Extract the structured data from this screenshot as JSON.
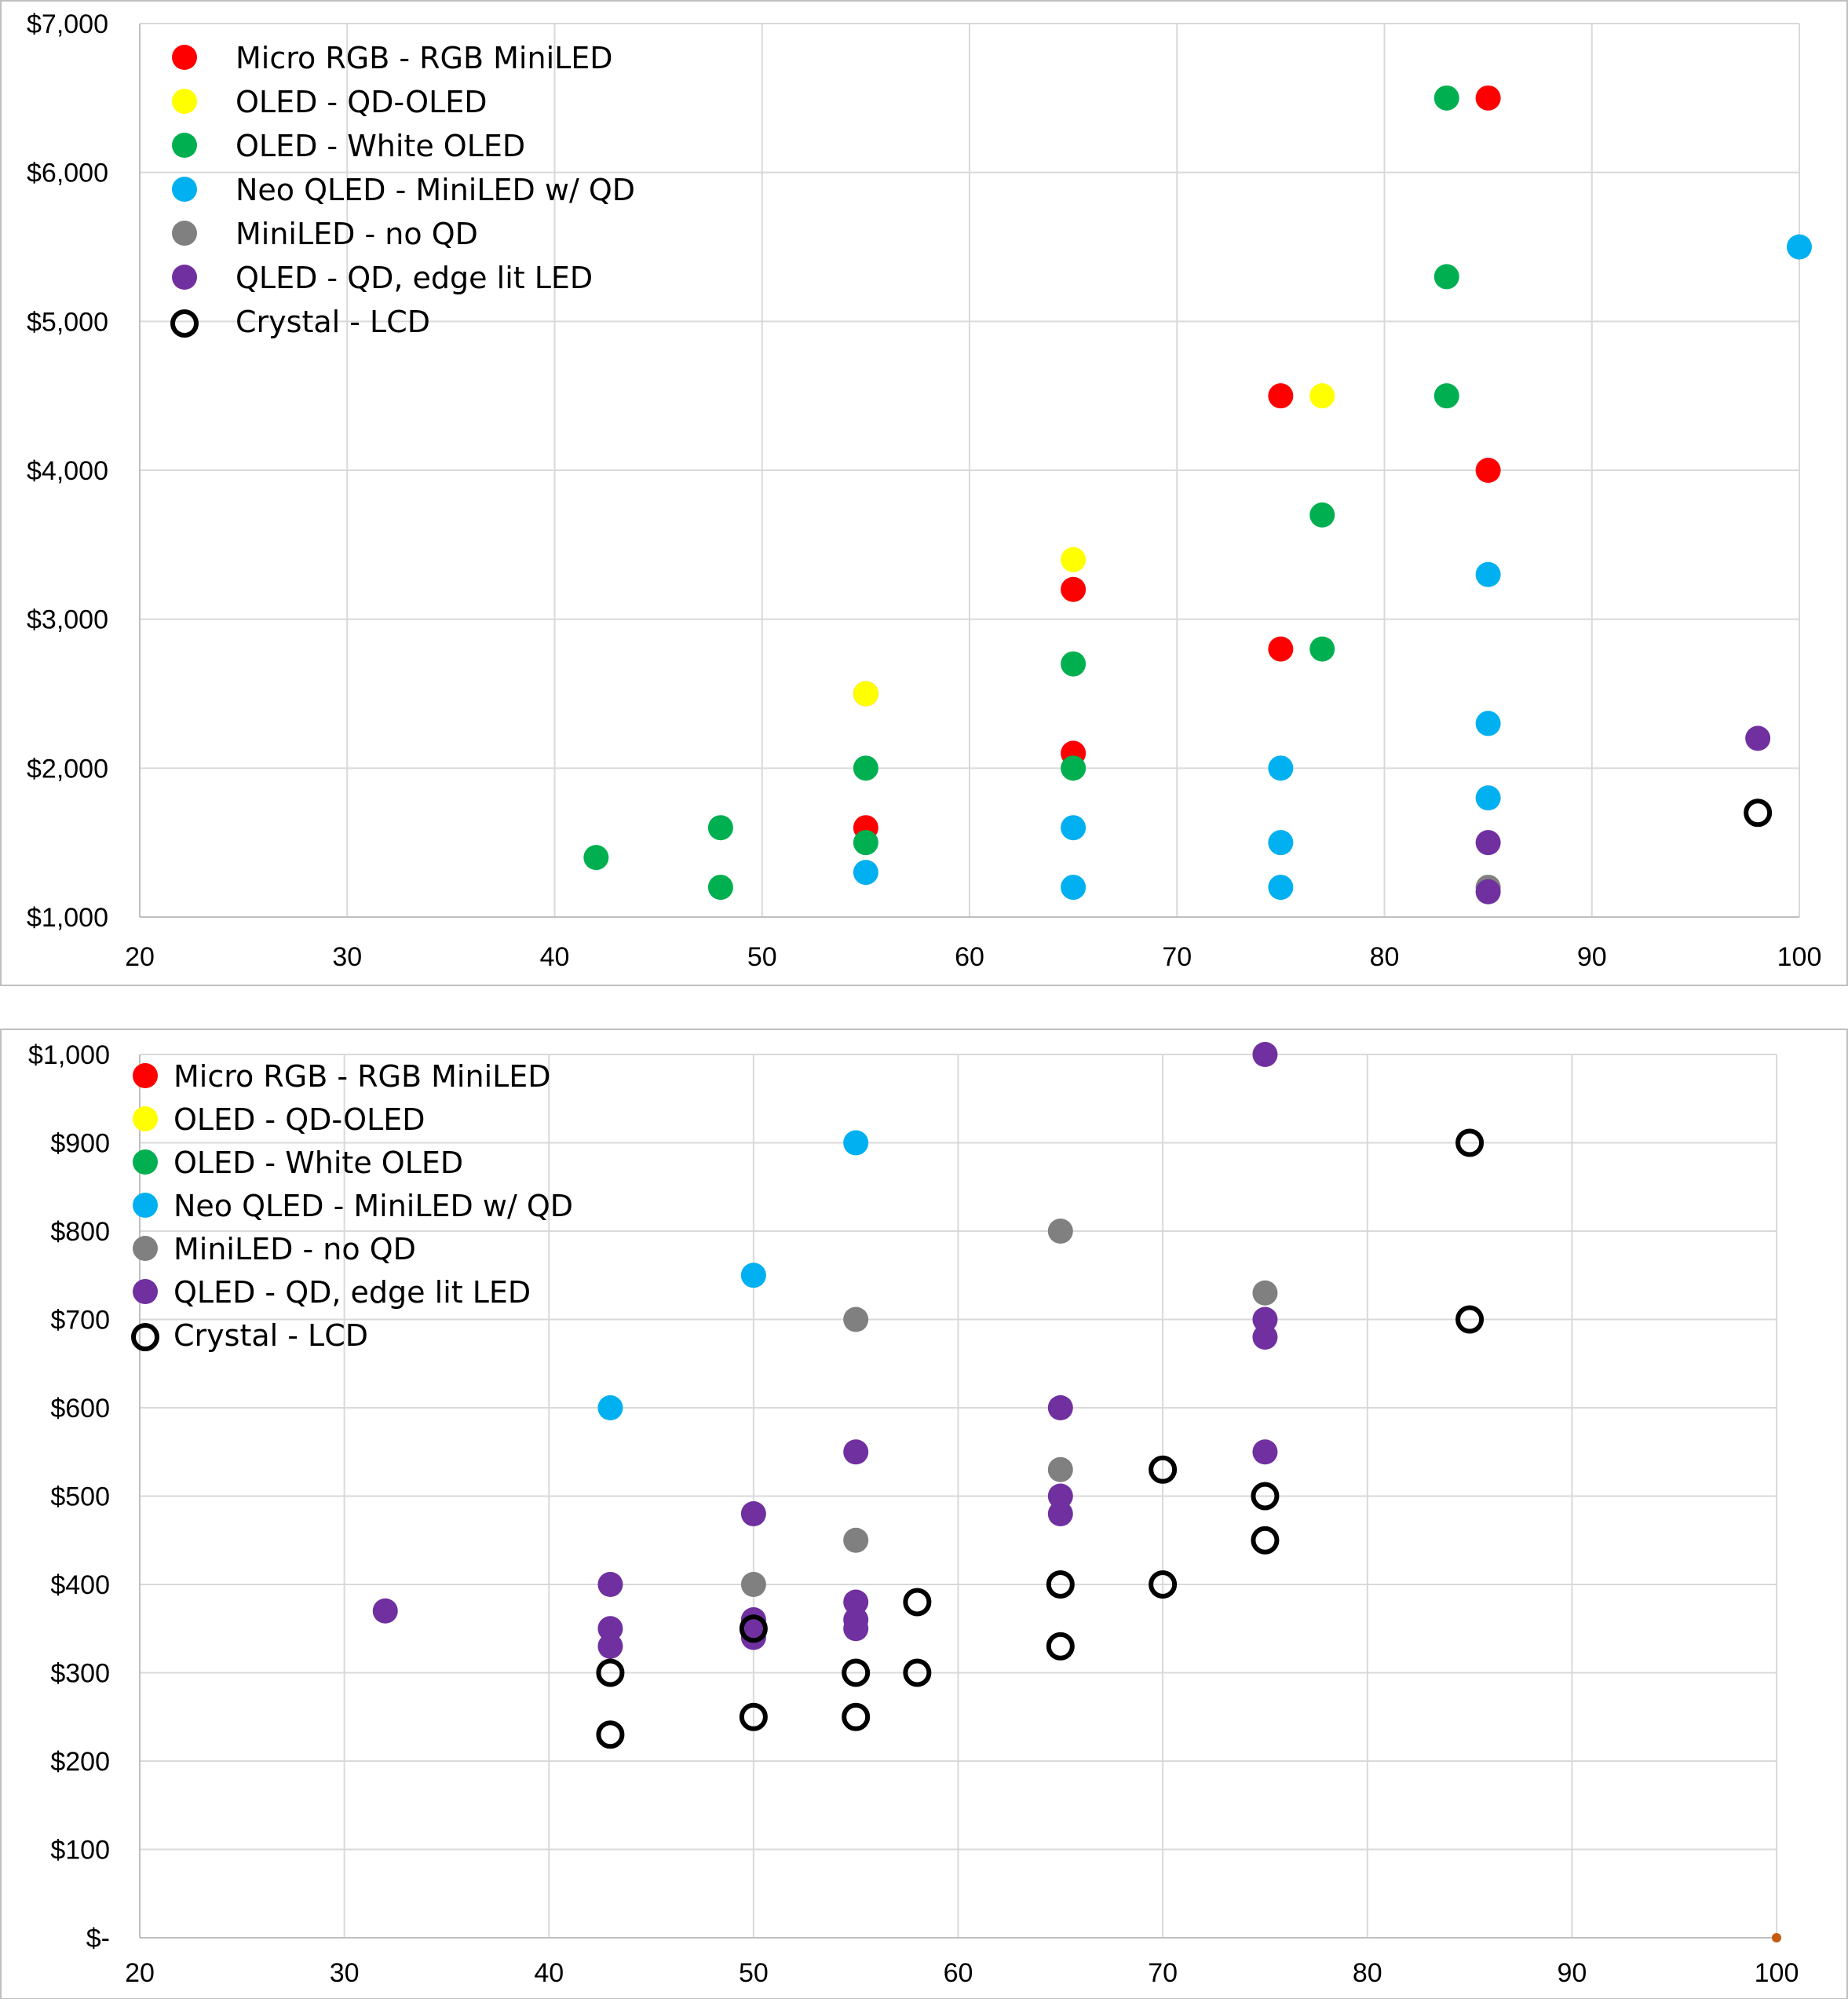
{
  "series_styles": [
    {
      "name": "Micro RGB - RGB MiniLED",
      "color": "#ff0000",
      "hollow": false
    },
    {
      "name": "OLED - QD-OLED",
      "color": "#ffff00",
      "hollow": false
    },
    {
      "name": "OLED - White OLED",
      "color": "#00b050",
      "hollow": false
    },
    {
      "name": "Neo QLED - MiniLED w/ QD",
      "color": "#00b0f0",
      "hollow": false
    },
    {
      "name": "MiniLED - no QD",
      "color": "#808080",
      "hollow": false
    },
    {
      "name": "QLED - QD, edge lit LED",
      "color": "#7030a0",
      "hollow": false
    },
    {
      "name": "Crystal - LCD",
      "color": "#000000",
      "hollow": true
    }
  ],
  "chart_data": [
    {
      "type": "scatter",
      "title": "",
      "xlabel": "",
      "ylabel": "",
      "xlim": [
        20,
        100
      ],
      "ylim": [
        1000,
        7000
      ],
      "x_ticks": [
        "20",
        "30",
        "40",
        "50",
        "60",
        "70",
        "80",
        "90",
        "100"
      ],
      "y_ticks": [
        "$1,000",
        "$2,000",
        "$3,000",
        "$4,000",
        "$5,000",
        "$6,000",
        "$7,000"
      ],
      "grid": true,
      "legend_position": "top-left",
      "series": [
        {
          "name": "Micro RGB - RGB MiniLED",
          "x": [
            85,
            75,
            85,
            65,
            75,
            55,
            65,
            55
          ],
          "y": [
            6500,
            4500,
            4000,
            3200,
            2800,
            2500,
            2100,
            1600
          ]
        },
        {
          "name": "OLED - QD-OLED",
          "x": [
            77,
            65,
            55
          ],
          "y": [
            4500,
            3400,
            2500
          ]
        },
        {
          "name": "OLED - White OLED",
          "x": [
            83,
            83,
            83,
            77,
            65,
            77,
            65,
            55,
            48,
            55,
            42,
            48
          ],
          "y": [
            6500,
            5300,
            4500,
            3700,
            2700,
            2800,
            2000,
            2000,
            1600,
            1500,
            1400,
            1200
          ]
        },
        {
          "name": "Neo QLED - MiniLED w/ QD",
          "x": [
            100,
            85,
            85,
            75,
            85,
            65,
            75,
            55,
            65,
            75
          ],
          "y": [
            5500,
            3300,
            2300,
            2000,
            1800,
            1600,
            1500,
            1300,
            1200,
            1200
          ]
        },
        {
          "name": "MiniLED - no QD",
          "x": [
            85
          ],
          "y": [
            1200
          ]
        },
        {
          "name": "QLED - QD, edge lit LED",
          "x": [
            98,
            85,
            85
          ],
          "y": [
            2200,
            1500,
            1170
          ]
        },
        {
          "name": "Crystal - LCD",
          "x": [
            98
          ],
          "y": [
            1700
          ]
        }
      ]
    },
    {
      "type": "scatter",
      "title": "",
      "xlabel": "",
      "ylabel": "",
      "xlim": [
        20,
        100
      ],
      "ylim": [
        0,
        1000
      ],
      "x_ticks": [
        "20",
        "30",
        "40",
        "50",
        "60",
        "70",
        "80",
        "90",
        "100"
      ],
      "y_ticks": [
        "$-",
        "$100",
        "$200",
        "$300",
        "$400",
        "$500",
        "$600",
        "$700",
        "$800",
        "$900",
        "$1,000"
      ],
      "grid": true,
      "legend_position": "top-left",
      "series": [
        {
          "name": "Micro RGB - RGB MiniLED",
          "x": [],
          "y": []
        },
        {
          "name": "OLED - QD-OLED",
          "x": [],
          "y": []
        },
        {
          "name": "OLED - White OLED",
          "x": [],
          "y": []
        },
        {
          "name": "Neo QLED - MiniLED w/ QD",
          "x": [
            55,
            50,
            43
          ],
          "y": [
            900,
            750,
            600
          ]
        },
        {
          "name": "MiniLED - no QD",
          "x": [
            65,
            55,
            75,
            65,
            55,
            50
          ],
          "y": [
            800,
            700,
            730,
            530,
            450,
            400
          ]
        },
        {
          "name": "QLED - QD, edge lit LED",
          "x": [
            75,
            75,
            75,
            65,
            55,
            75,
            65,
            50,
            65,
            43,
            55,
            43,
            32,
            50,
            55,
            43,
            50,
            55
          ],
          "y": [
            1000,
            700,
            680,
            600,
            550,
            550,
            500,
            480,
            480,
            400,
            380,
            350,
            370,
            360,
            360,
            330,
            340,
            350
          ]
        },
        {
          "name": "Crystal - LCD",
          "x": [
            85,
            85,
            70,
            75,
            75,
            65,
            70,
            58,
            50,
            65,
            43,
            55,
            58,
            50,
            55,
            43
          ],
          "y": [
            900,
            700,
            530,
            500,
            450,
            400,
            400,
            380,
            350,
            330,
            300,
            300,
            300,
            250,
            250,
            230
          ]
        }
      ]
    }
  ]
}
